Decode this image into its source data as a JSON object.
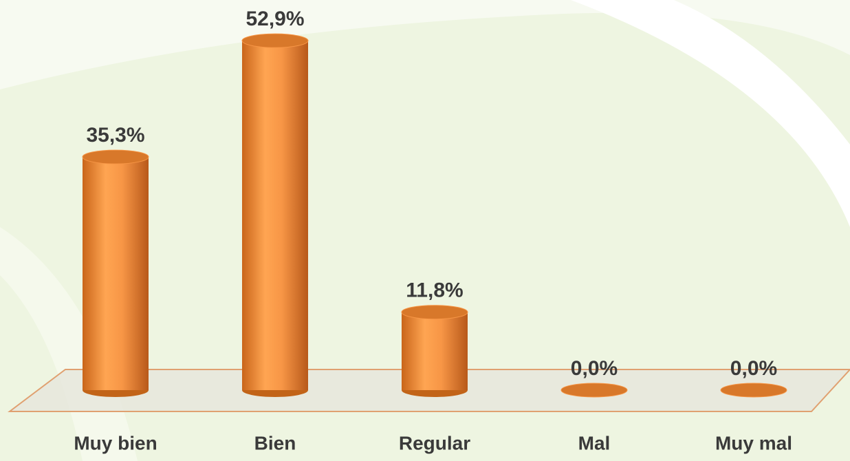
{
  "chart_data": {
    "type": "bar",
    "categories": [
      "Muy bien",
      "Bien",
      "Regular",
      "Mal",
      "Muy mal"
    ],
    "values": [
      35.3,
      52.9,
      11.8,
      0.0,
      0.0
    ],
    "value_labels": [
      "35,3%",
      "52,9%",
      "11,8%",
      "0,0%",
      "0,0%"
    ],
    "color": "#f79646"
  }
}
